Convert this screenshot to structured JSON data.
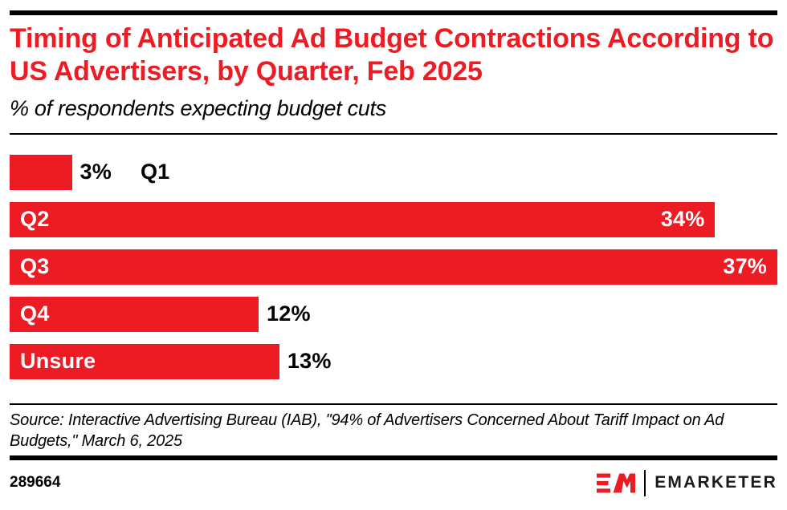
{
  "header": {
    "title": "Timing of Anticipated Ad Budget Contractions According to US Advertisers, by Quarter, Feb 2025",
    "subtitle": "% of respondents expecting budget cuts"
  },
  "chart_data": {
    "type": "bar",
    "orientation": "horizontal",
    "title": "Timing of Anticipated Ad Budget Contractions According to US Advertisers, by Quarter, Feb 2025",
    "subtitle": "% of respondents expecting budget cuts",
    "categories": [
      "Q1",
      "Q2",
      "Q3",
      "Q4",
      "Unsure"
    ],
    "values": [
      3,
      34,
      37,
      12,
      13
    ],
    "xlim": [
      0,
      37
    ],
    "axis_max": 37,
    "grid": false,
    "bar_color": "#ED1C24",
    "bars": [
      {
        "label": "Q1",
        "value": 3,
        "display": "3%",
        "label_inside": false,
        "value_inside": false
      },
      {
        "label": "Q2",
        "value": 34,
        "display": "34%",
        "label_inside": true,
        "value_inside": true
      },
      {
        "label": "Q3",
        "value": 37,
        "display": "37%",
        "label_inside": true,
        "value_inside": true
      },
      {
        "label": "Q4",
        "value": 12,
        "display": "12%",
        "label_inside": true,
        "value_inside": false
      },
      {
        "label": "Unsure",
        "value": 13,
        "display": "13%",
        "label_inside": true,
        "value_inside": false
      }
    ]
  },
  "source": {
    "text": "Source: Interactive Advertising Bureau (IAB), \"94% of Advertisers Concerned About Tariff Impact on Ad Budgets,\" March 6, 2025"
  },
  "footer": {
    "chart_id": "289664",
    "brand": "EMARKETER"
  },
  "colors": {
    "accent_red": "#ED1C24",
    "text_black": "#000000",
    "inside_label_white": "#ffffff"
  }
}
